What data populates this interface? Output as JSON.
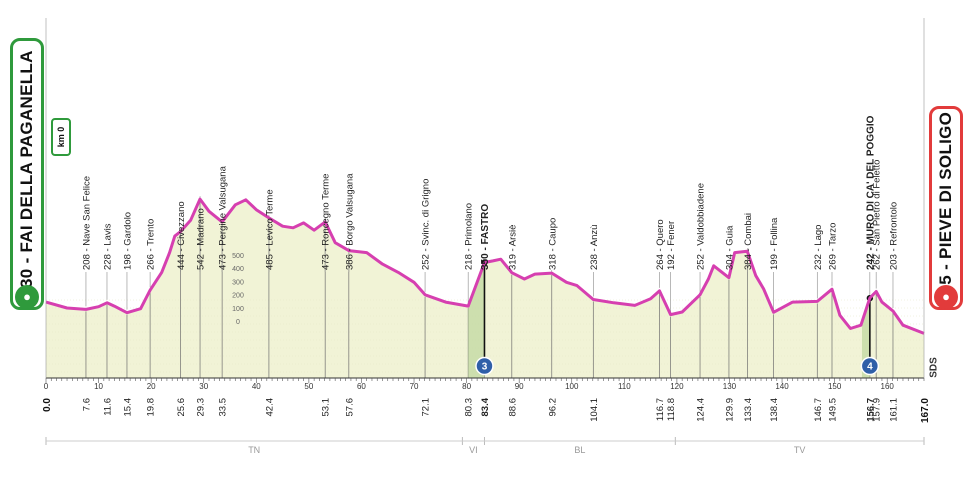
{
  "start": {
    "label": "230 - FAI DELLA PAGANELLA",
    "km0_label": "km 0",
    "icon": "cyclist-icon"
  },
  "finish": {
    "label": "135 - PIEVE DI SOLIGO",
    "icon": "cyclist-icon"
  },
  "sds_label": "SDS",
  "colors": {
    "profile": "#d63fb0",
    "fill": "#f1f3d6",
    "start": "#2f9a3c",
    "finish": "#e23b3b",
    "climb": "#c4d9a4",
    "gpm": "#2f5fa8"
  },
  "chart_data": {
    "type": "area",
    "title": "",
    "xlabel": "",
    "ylabel": "",
    "xlim": [
      0,
      167
    ],
    "ylim": [
      0,
      600
    ],
    "grid": false,
    "legend": "none",
    "x_ticks": [
      0,
      10,
      20,
      30,
      40,
      50,
      60,
      70,
      80,
      90,
      100,
      110,
      120,
      130,
      140,
      150,
      160
    ],
    "altitude_scale": [
      500,
      400,
      300,
      200,
      100,
      0
    ],
    "profile": [
      [
        0,
        230
      ],
      [
        4,
        212
      ],
      [
        7.6,
        208
      ],
      [
        10,
        216
      ],
      [
        11.6,
        228
      ],
      [
        13,
        218
      ],
      [
        15.4,
        198
      ],
      [
        18,
        210
      ],
      [
        19.8,
        266
      ],
      [
        22,
        320
      ],
      [
        23.5,
        380
      ],
      [
        24.5,
        430
      ],
      [
        25.6,
        444
      ],
      [
        27.5,
        478
      ],
      [
        29.3,
        542
      ],
      [
        31,
        505
      ],
      [
        33.5,
        473
      ],
      [
        36,
        525
      ],
      [
        38,
        540
      ],
      [
        40,
        510
      ],
      [
        42.4,
        485
      ],
      [
        45,
        460
      ],
      [
        47,
        455
      ],
      [
        49,
        470
      ],
      [
        51,
        448
      ],
      [
        53.1,
        473
      ],
      [
        55,
        410
      ],
      [
        57.6,
        386
      ],
      [
        61,
        380
      ],
      [
        64,
        345
      ],
      [
        67,
        320
      ],
      [
        70,
        290
      ],
      [
        72.1,
        252
      ],
      [
        76,
        230
      ],
      [
        80.3,
        218
      ],
      [
        82,
        290
      ],
      [
        83.4,
        350
      ],
      [
        85,
        355
      ],
      [
        86.5,
        360
      ],
      [
        88.6,
        319
      ],
      [
        91,
        300
      ],
      [
        93,
        315
      ],
      [
        96.2,
        318
      ],
      [
        99,
        290
      ],
      [
        101,
        280
      ],
      [
        104.1,
        238
      ],
      [
        108,
        228
      ],
      [
        112,
        220
      ],
      [
        115,
        240
      ],
      [
        116.7,
        264
      ],
      [
        118.8,
        192
      ],
      [
        121,
        200
      ],
      [
        124.4,
        252
      ],
      [
        126,
        300
      ],
      [
        127,
        340
      ],
      [
        129.9,
        304
      ],
      [
        131,
        380
      ],
      [
        133.4,
        384
      ],
      [
        135,
        310
      ],
      [
        136.5,
        270
      ],
      [
        138.4,
        199
      ],
      [
        142,
        230
      ],
      [
        146.7,
        232
      ],
      [
        149.5,
        269
      ],
      [
        151,
        190
      ],
      [
        153,
        150
      ],
      [
        155,
        160
      ],
      [
        156.7,
        242
      ],
      [
        157.9,
        262
      ],
      [
        159,
        230
      ],
      [
        161.1,
        203
      ],
      [
        163,
        160
      ],
      [
        167,
        135
      ]
    ],
    "waypoints": [
      {
        "km": 7.6,
        "km_label": "7.6",
        "label": "208 - Nave San Felice"
      },
      {
        "km": 11.6,
        "km_label": "11.6",
        "label": "228 - Lavis"
      },
      {
        "km": 15.4,
        "km_label": "15.4",
        "label": "198 - Gardolo"
      },
      {
        "km": 19.8,
        "km_label": "19.8",
        "label": "266 - Trento"
      },
      {
        "km": 25.6,
        "km_label": "25.6",
        "label": "444 - Civezzano"
      },
      {
        "km": 29.3,
        "km_label": "29.3",
        "label": "542 - Madrano"
      },
      {
        "km": 33.5,
        "km_label": "33.5",
        "label": "473 - Pergine Valsugana"
      },
      {
        "km": 42.4,
        "km_label": "42.4",
        "label": "485 - Levico Terme"
      },
      {
        "km": 53.1,
        "km_label": "53.1",
        "label": "473 - Roncegno Terme"
      },
      {
        "km": 57.6,
        "km_label": "57.6",
        "label": "386 - Borgo Valsugana"
      },
      {
        "km": 72.1,
        "km_label": "72.1",
        "label": "252 - Svinc. di Grigno"
      },
      {
        "km": 80.3,
        "km_label": "80.3",
        "label": "218 - Primolano"
      },
      {
        "km": 83.4,
        "km_label": "83.4",
        "label": "350 - FASTRO",
        "bold": true
      },
      {
        "km": 88.6,
        "km_label": "88.6",
        "label": "319 - Arsiè"
      },
      {
        "km": 96.2,
        "km_label": "96.2",
        "label": "318 - Caupo"
      },
      {
        "km": 104.1,
        "km_label": "104.1",
        "label": "238 - Anzù"
      },
      {
        "km": 116.7,
        "km_label": "116.7",
        "label": "264 - Quero"
      },
      {
        "km": 118.8,
        "km_label": "118.8",
        "label": "192 - Fener"
      },
      {
        "km": 124.4,
        "km_label": "124.4",
        "label": "252 - Valdobbiadene"
      },
      {
        "km": 129.9,
        "km_label": "129.9",
        "label": "304 - Guia"
      },
      {
        "km": 133.4,
        "km_label": "133.4",
        "label": "384 - Combai"
      },
      {
        "km": 138.4,
        "km_label": "138.4",
        "label": "199 - Follina"
      },
      {
        "km": 146.7,
        "km_label": "146.7",
        "label": "232 - Lago"
      },
      {
        "km": 149.5,
        "km_label": "149.5",
        "label": "269 - Tarzo"
      },
      {
        "km": 156.7,
        "km_label": "156.7",
        "label": "242 - MURO DI CA' DEL POGGIO",
        "bold": true
      },
      {
        "km": 157.9,
        "km_label": "157.9",
        "label": "262 - San Pietro di Feletto"
      },
      {
        "km": 161.1,
        "km_label": "161.1",
        "label": "203 - Refrontolo"
      }
    ],
    "start_km_label": "0.0",
    "finish_km_label": "167.0",
    "climbs": [
      {
        "category": "3",
        "start_km": 80.3,
        "top_km": 83.4,
        "top_alt": 350
      },
      {
        "category": "4",
        "start_km": 155.2,
        "top_km": 156.7,
        "top_alt": 242
      }
    ],
    "regions": [
      {
        "label": "TN",
        "from": 0,
        "to": 79.2
      },
      {
        "label": "VI",
        "from": 79.2,
        "to": 83.4
      },
      {
        "label": "BL",
        "from": 83.4,
        "to": 119.7
      },
      {
        "label": "TV",
        "from": 119.7,
        "to": 167
      }
    ]
  }
}
